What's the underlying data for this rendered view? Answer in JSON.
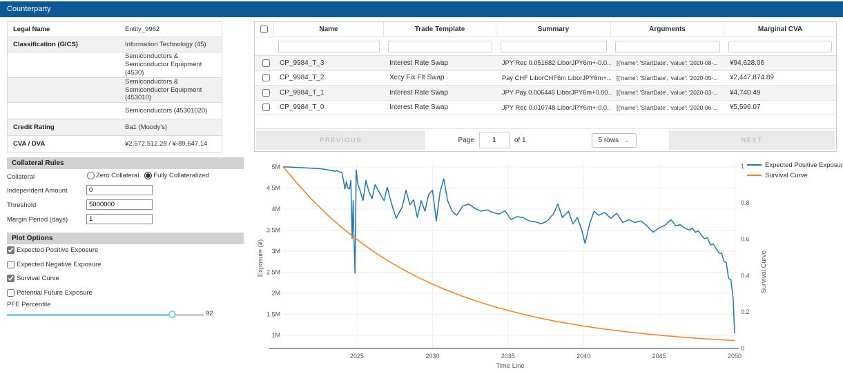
{
  "header": {
    "title": "Counterparty"
  },
  "counterparty_info": {
    "rows": [
      {
        "label": "Legal Name",
        "value": "Entity_9962"
      },
      {
        "label": "Classification (GICS)",
        "value": "Information Technology (45)"
      },
      {
        "label": "",
        "value": "Semiconductors & Semiconductor Equipment (4530)"
      },
      {
        "label": "",
        "value": "Semiconductors & Semiconductor Equipment (453010)"
      },
      {
        "label": "",
        "value": "Semiconductors (45301020)"
      },
      {
        "label": "Credit Rating",
        "value": "Ba1 (Moody's)"
      },
      {
        "label": "CVA / DVA",
        "value": "¥2,572,512.28 / ¥-89,647.14"
      }
    ]
  },
  "collateral_rules": {
    "title": "Collateral Rules",
    "collateral_label": "Collateral",
    "radio_options": [
      {
        "label": "Zero Collateral",
        "selected": false
      },
      {
        "label": "Fully Collateralized",
        "selected": true
      }
    ],
    "fields": [
      {
        "label": "Independent Amount",
        "value": "0"
      },
      {
        "label": "Threshold",
        "value": "5000000"
      },
      {
        "label": "Margin Period (days)",
        "value": "1"
      }
    ]
  },
  "plot_options": {
    "title": "Plot Options",
    "items": [
      {
        "label": "Expected Positive Exposure",
        "checked": true
      },
      {
        "label": "Expected Negative Exposure",
        "checked": false
      },
      {
        "label": "Survival Curve",
        "checked": true
      },
      {
        "label": "Potential Future Exposure",
        "checked": false
      }
    ],
    "pfe_label": "PFE Percentile",
    "pfe_value": "92"
  },
  "trades_table": {
    "columns": [
      "Name",
      "Trade Template",
      "Summary",
      "Arguments",
      "Marginal CVA"
    ],
    "rows": [
      {
        "name": "CP_9984_T_3",
        "template": "Interest Rate Swap",
        "summary": "JPY Rec 0.051682 LiborJPY6m+-0.0...",
        "arguments": "[{'name': 'StartDate', 'value': '2020-08-...",
        "marginal_cva": "¥94,628.06"
      },
      {
        "name": "CP_9984_T_2",
        "template": "Xccy Fix Flt Swap",
        "summary": "Pay CHF LiborCHF6m LiborJPY6m+...",
        "arguments": "[{'name': 'StartDate', 'value': '2020-05-...",
        "marginal_cva": "¥2,447,874.89"
      },
      {
        "name": "CP_9984_T_1",
        "template": "Interest Rate Swap",
        "summary": "JPY Pay 0.006446 LiborJPY6m+0.00...",
        "arguments": "[{'name': 'StartDate', 'value': '2020-03-...",
        "marginal_cva": "¥4,740.49"
      },
      {
        "name": "CP_9984_T_0",
        "template": "Interest Rate Swap",
        "summary": "JPY Rec 0.010748 LiborJPY6m+-0.0...",
        "arguments": "[{'name': 'StartDate', 'value': '2020-06-...",
        "marginal_cva": "¥5,596.07"
      }
    ],
    "pagination": {
      "previous": "PREVIOUS",
      "page_label": "Page",
      "page_value": "1",
      "of_label": "of 1",
      "rows_select": "5 rows",
      "next": "NEXT"
    }
  },
  "chart_data": {
    "type": "line",
    "title": "",
    "xlabel": "Time Line",
    "ylabel_left": "Exposure (¥)",
    "ylabel_right": "Survival Curve",
    "x_range": [
      2020,
      2050.5
    ],
    "x_ticks": [
      2025,
      2030,
      2035,
      2040,
      2045,
      2050
    ],
    "y_left_ticks_labels": [
      "5M",
      "4.5M",
      "4M",
      "3.5M",
      "3M",
      "2.5M",
      "2M",
      "1.5M",
      "1M"
    ],
    "y_left_ticks_values_m": [
      5,
      4.5,
      4,
      3.5,
      3,
      2.5,
      2,
      1.5,
      1
    ],
    "y_right_ticks": [
      1,
      0.8,
      0.6,
      0.4,
      0.2,
      0
    ],
    "legend": [
      "Expected Positive Exposure",
      "Survival Curve"
    ],
    "legend_position": "top-right",
    "grid": true,
    "colors": {
      "expected_positive_exposure": "#1f77b4",
      "survival_curve": "#ff7e0e"
    },
    "series": [
      {
        "name": "Expected Positive Exposure",
        "axis": "left",
        "unit": "millions ¥",
        "x": [
          2020.1,
          2020.5,
          2021,
          2021.5,
          2022,
          2022.5,
          2023,
          2023.3,
          2023.5,
          2023.7,
          2023.85,
          2024,
          2024.1,
          2024.2,
          2024.3,
          2024.4,
          2024.5,
          2024.6,
          2024.68,
          2024.75,
          2024.8,
          2024.87,
          2024.95,
          2025.05,
          2025.2,
          2025.4,
          2025.6,
          2025.8,
          2026,
          2026.2,
          2026.4,
          2026.6,
          2026.8,
          2027,
          2027.2,
          2027.4,
          2027.6,
          2027.8,
          2028,
          2028.25,
          2028.5,
          2028.75,
          2029,
          2029.25,
          2029.5,
          2029.75,
          2030,
          2030.25,
          2030.5,
          2030.75,
          2031,
          2031.3,
          2031.6,
          2032,
          2032.4,
          2032.8,
          2033.2,
          2033.6,
          2034,
          2034.4,
          2034.8,
          2035.2,
          2035.6,
          2036,
          2036.4,
          2036.8,
          2037.2,
          2037.6,
          2038,
          2038.3,
          2038.6,
          2039,
          2039.3,
          2039.6,
          2039.9,
          2040.1,
          2040.4,
          2040.7,
          2041,
          2041.4,
          2041.8,
          2042.2,
          2042.6,
          2043,
          2043.4,
          2043.8,
          2044.2,
          2044.6,
          2045,
          2045.4,
          2045.8,
          2046.1,
          2046.4,
          2046.7,
          2047,
          2047.2,
          2047.4,
          2047.6,
          2047.8,
          2048,
          2048.2,
          2048.4,
          2048.6,
          2048.8,
          2049,
          2049.15,
          2049.3,
          2049.45,
          2049.6,
          2049.75,
          2049.9,
          2050
        ],
        "y": [
          5.0,
          5.0,
          4.99,
          4.98,
          4.97,
          4.96,
          4.94,
          4.92,
          4.9,
          4.91,
          4.88,
          4.87,
          4.7,
          4.48,
          4.65,
          4.5,
          4.48,
          4.68,
          3.3,
          4.2,
          3.35,
          2.48,
          4.93,
          4.6,
          4.45,
          4.2,
          4.68,
          4.4,
          4.25,
          4.58,
          4.45,
          4.32,
          4.2,
          4.52,
          4.25,
          4.0,
          3.78,
          3.92,
          4.05,
          4.45,
          4.1,
          4.22,
          3.8,
          4.2,
          3.95,
          4.35,
          4.45,
          3.72,
          4.4,
          4.72,
          4.2,
          3.95,
          3.85,
          4.07,
          4.12,
          4.02,
          3.95,
          3.98,
          3.92,
          3.88,
          3.96,
          3.75,
          3.82,
          3.8,
          3.72,
          3.7,
          3.65,
          3.72,
          3.88,
          4.12,
          3.8,
          3.95,
          3.65,
          3.8,
          3.48,
          3.18,
          3.65,
          3.95,
          3.85,
          3.92,
          3.78,
          3.9,
          3.68,
          3.75,
          3.68,
          3.72,
          3.6,
          3.45,
          3.55,
          3.62,
          3.75,
          3.6,
          3.63,
          3.55,
          3.5,
          3.55,
          3.45,
          3.48,
          3.38,
          3.3,
          3.32,
          3.15,
          3.17,
          3.05,
          2.95,
          2.95,
          2.75,
          2.73,
          2.35,
          2.33,
          1.9,
          1.05
        ]
      },
      {
        "name": "Survival Curve",
        "axis": "right",
        "unit": "probability",
        "x": [
          2020.1,
          2021,
          2022,
          2023,
          2024,
          2025,
          2026,
          2027,
          2028,
          2029,
          2030,
          2031,
          2032,
          2033,
          2034,
          2035,
          2036,
          2037,
          2038,
          2039,
          2040,
          2041,
          2042,
          2043,
          2044,
          2045,
          2046,
          2047,
          2048,
          2049,
          2050
        ],
        "y": [
          1.0,
          0.91,
          0.819,
          0.737,
          0.664,
          0.598,
          0.538,
          0.484,
          0.436,
          0.392,
          0.353,
          0.318,
          0.286,
          0.258,
          0.232,
          0.209,
          0.188,
          0.169,
          0.152,
          0.137,
          0.123,
          0.111,
          0.1,
          0.09,
          0.081,
          0.073,
          0.066,
          0.059,
          0.053,
          0.048,
          0.043
        ]
      }
    ]
  }
}
